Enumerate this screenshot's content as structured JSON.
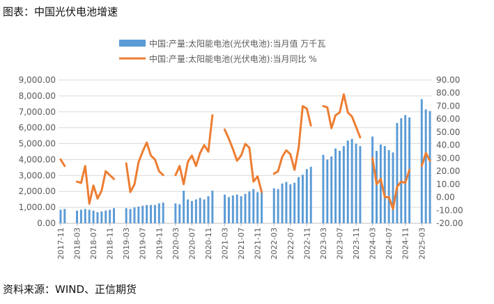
{
  "figure": {
    "title": "图表：中国光伏电池增速",
    "source": "资料来源：WIND、正信期货"
  },
  "colors": {
    "bar": "#5b9bd5",
    "line": "#ed7d31",
    "grid": "#d9d9d9",
    "axis": "#bfbfbf",
    "text": "#595959"
  },
  "chart_data": {
    "type": "bar",
    "legend_position": "top",
    "grid": true,
    "y_left": {
      "ylim": [
        0,
        9000
      ],
      "ticks": [
        "0.00",
        "1,000.00",
        "2,000.00",
        "3,000.00",
        "4,000.00",
        "5,000.00",
        "6,000.00",
        "7,000.00",
        "8,000.00",
        "9,000.00"
      ]
    },
    "y_right": {
      "ylim": [
        -20,
        90
      ],
      "ticks": [
        "-20.00",
        "-10.00",
        "0.00",
        "10.00",
        "20.00",
        "30.00",
        "40.00",
        "50.00",
        "60.00",
        "70.00",
        "80.00",
        "90.00"
      ]
    },
    "x_tick_labels": [
      "2017-11",
      "2018-03",
      "2018-07",
      "2018-11",
      "2019-03",
      "2019-07",
      "2019-11",
      "2020-03",
      "2020-07",
      "2020-11",
      "2021-03",
      "2021-07",
      "2021-11",
      "2022-03",
      "2022-07",
      "2022-11",
      "2023-03",
      "2023-07",
      "2023-11",
      "2024-03",
      "2024-07",
      "2024-11",
      "2025-03"
    ],
    "categories": [
      "2017-11",
      "2017-12",
      "2018-01",
      "2018-02",
      "2018-03",
      "2018-04",
      "2018-05",
      "2018-06",
      "2018-07",
      "2018-08",
      "2018-09",
      "2018-10",
      "2018-11",
      "2018-12",
      "2019-01",
      "2019-02",
      "2019-03",
      "2019-04",
      "2019-05",
      "2019-06",
      "2019-07",
      "2019-08",
      "2019-09",
      "2019-10",
      "2019-11",
      "2019-12",
      "2020-01",
      "2020-02",
      "2020-03",
      "2020-04",
      "2020-05",
      "2020-06",
      "2020-07",
      "2020-08",
      "2020-09",
      "2020-10",
      "2020-11",
      "2020-12",
      "2021-01",
      "2021-02",
      "2021-03",
      "2021-04",
      "2021-05",
      "2021-06",
      "2021-07",
      "2021-08",
      "2021-09",
      "2021-10",
      "2021-11",
      "2021-12",
      "2022-01",
      "2022-02",
      "2022-03",
      "2022-04",
      "2022-05",
      "2022-06",
      "2022-07",
      "2022-08",
      "2022-09",
      "2022-10",
      "2022-11",
      "2022-12",
      "2023-01",
      "2023-02",
      "2023-03",
      "2023-04",
      "2023-05",
      "2023-06",
      "2023-07",
      "2023-08",
      "2023-09",
      "2023-10",
      "2023-11",
      "2023-12",
      "2024-01",
      "2024-02",
      "2024-03",
      "2024-04",
      "2024-05",
      "2024-06",
      "2024-07",
      "2024-08",
      "2024-09",
      "2024-10",
      "2024-11",
      "2024-12",
      "2025-01",
      "2025-02",
      "2025-03",
      "2025-04",
      "2025-05"
    ],
    "series": [
      {
        "name": "中国:产量:太阳能电池(光伏电池):当月值 万千瓦",
        "type": "bar",
        "axis": "left",
        "values": [
          850,
          900,
          null,
          null,
          800,
          850,
          900,
          850,
          800,
          700,
          750,
          800,
          850,
          950,
          null,
          null,
          950,
          900,
          1000,
          1050,
          1100,
          1150,
          1150,
          1150,
          1250,
          1300,
          null,
          null,
          1250,
          1200,
          2050,
          1500,
          1400,
          1500,
          1600,
          1500,
          1700,
          2050,
          null,
          null,
          1800,
          1650,
          1750,
          1800,
          1700,
          1850,
          2000,
          2150,
          1950,
          2050,
          null,
          null,
          2200,
          2150,
          2500,
          2600,
          2450,
          2550,
          2900,
          3050,
          3400,
          3550,
          null,
          null,
          4300,
          4000,
          4200,
          4700,
          4550,
          4850,
          5200,
          5300,
          5000,
          4850,
          null,
          null,
          5450,
          4550,
          4950,
          4850,
          4600,
          4450,
          6300,
          6600,
          6800,
          6650,
          null,
          null,
          7800,
          7150,
          7050
        ]
      },
      {
        "name": "中国:产量:太阳能电池(光伏电池):当月同比 %",
        "type": "line",
        "axis": "right",
        "values": [
          29,
          24,
          null,
          null,
          12,
          11,
          24,
          -5,
          9,
          -1,
          5,
          20,
          17,
          14,
          null,
          null,
          26,
          4,
          10,
          27,
          35,
          42,
          32,
          29,
          20,
          17,
          null,
          null,
          17,
          24,
          10,
          27,
          32,
          24,
          34,
          40,
          35,
          63,
          null,
          null,
          52,
          45,
          37,
          28,
          32,
          41,
          38,
          12,
          16,
          4,
          null,
          null,
          18,
          20,
          31,
          36,
          33,
          21,
          38,
          70,
          68,
          55,
          null,
          null,
          70,
          69,
          53,
          63,
          65,
          79,
          65,
          62,
          54,
          46,
          null,
          null,
          30,
          10,
          14,
          0,
          0,
          -9,
          8,
          12,
          11,
          21,
          null,
          null,
          24,
          34,
          28
        ]
      }
    ]
  }
}
